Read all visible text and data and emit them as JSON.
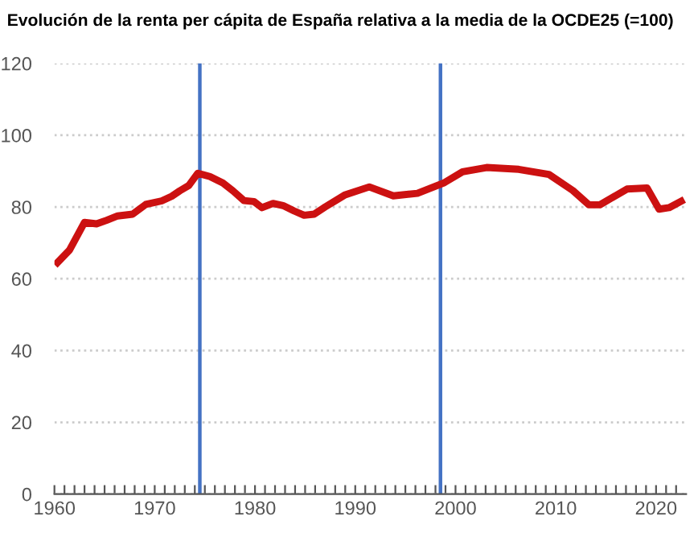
{
  "chart_data": {
    "type": "line",
    "title": "Evolución de la renta per cápita de España relativa a la media de la OCDE25 (=100)",
    "x": [
      1960.3,
      1961.5,
      1963,
      1964.2,
      1965.2,
      1966.3,
      1967.8,
      1969.1,
      1970.7,
      1971.7,
      1972.5,
      1973.4,
      1974.3,
      1975.5,
      1976.8,
      1977.8,
      1978.9,
      1979.9,
      1980.7,
      1981.8,
      1982.8,
      1983.9,
      1984.9,
      1985.9,
      1987,
      1989,
      1991.4,
      1993.8,
      1996.2,
      1998.9,
      2000.7,
      2003.1,
      2006.3,
      2009.3,
      2011.7,
      2013.3,
      2014.4,
      2017.1,
      2019.1,
      2020.3,
      2021.3,
      2022.5
    ],
    "series": [
      {
        "color": "#cc1111",
        "values": [
          64.5,
          68,
          75.7,
          75.3,
          76.3,
          77.5,
          78,
          80.7,
          81.7,
          83,
          84.5,
          86,
          89.4,
          88.5,
          86.7,
          84.5,
          81.8,
          81.5,
          79.8,
          81,
          80.4,
          78.9,
          77.7,
          78,
          80,
          83.4,
          85.6,
          83.1,
          83.8,
          86.8,
          89.8,
          91,
          90.5,
          89.1,
          84.6,
          80.6,
          80.6,
          85,
          85.3,
          79.4,
          79.8,
          81.6
        ]
      }
    ],
    "xlim": [
      1960,
      2023
    ],
    "xticks": [
      1960,
      {
        "value": 1961,
        "label": null
      },
      {
        "value": 1962,
        "label": null
      },
      {
        "value": 1963,
        "label": null
      },
      {
        "value": 1964,
        "label": null
      },
      {
        "value": 1965,
        "label": null
      },
      {
        "value": 1966,
        "label": null
      },
      {
        "value": 1967,
        "label": null
      },
      {
        "value": 1968,
        "label": null
      },
      {
        "value": 1969,
        "label": null
      },
      1970,
      {
        "value": 1971,
        "label": null
      },
      {
        "value": 1972,
        "label": null
      },
      {
        "value": 1973,
        "label": null
      },
      {
        "value": 1974,
        "label": null
      },
      {
        "value": 1975,
        "label": null
      },
      {
        "value": 1976,
        "label": null
      },
      {
        "value": 1977,
        "label": null
      },
      {
        "value": 1978,
        "label": null
      },
      {
        "value": 1979,
        "label": null
      },
      1980,
      {
        "value": 1981,
        "label": null
      },
      {
        "value": 1982,
        "label": null
      },
      {
        "value": 1983,
        "label": null
      },
      {
        "value": 1984,
        "label": null
      },
      {
        "value": 1985,
        "label": null
      },
      {
        "value": 1986,
        "label": null
      },
      {
        "value": 1987,
        "label": null
      },
      {
        "value": 1988,
        "label": null
      },
      {
        "value": 1989,
        "label": null
      },
      1990,
      {
        "value": 1991,
        "label": null
      },
      {
        "value": 1992,
        "label": null
      },
      {
        "value": 1993,
        "label": null
      },
      {
        "value": 1994,
        "label": null
      },
      {
        "value": 1995,
        "label": null
      },
      {
        "value": 1996,
        "label": null
      },
      {
        "value": 1997,
        "label": null
      },
      {
        "value": 1998,
        "label": null
      },
      {
        "value": 1999,
        "label": null
      },
      2000,
      {
        "value": 2001,
        "label": null
      },
      {
        "value": 2002,
        "label": null
      },
      {
        "value": 2003,
        "label": null
      },
      {
        "value": 2004,
        "label": null
      },
      {
        "value": 2005,
        "label": null
      },
      {
        "value": 2006,
        "label": null
      },
      {
        "value": 2007,
        "label": null
      },
      {
        "value": 2008,
        "label": null
      },
      {
        "value": 2009,
        "label": null
      },
      2010,
      {
        "value": 2011,
        "label": null
      },
      {
        "value": 2012,
        "label": null
      },
      {
        "value": 2013,
        "label": null
      },
      {
        "value": 2014,
        "label": null
      },
      {
        "value": 2015,
        "label": null
      },
      {
        "value": 2016,
        "label": null
      },
      {
        "value": 2017,
        "label": null
      },
      {
        "value": 2018,
        "label": null
      },
      {
        "value": 2019,
        "label": null
      },
      2020,
      {
        "value": 2021,
        "label": null
      },
      {
        "value": 2022,
        "label": null
      }
    ],
    "ylim": [
      0,
      120
    ],
    "yticks": [
      0,
      20,
      40,
      60,
      80,
      100,
      120
    ],
    "grid": "y",
    "marker": "none",
    "line_style": "solid",
    "ref_lines": [
      {
        "axis": "x",
        "value": 1974.5,
        "color": "#4472c4"
      },
      {
        "axis": "x",
        "value": 1998.5,
        "color": "#4472c4"
      }
    ]
  }
}
